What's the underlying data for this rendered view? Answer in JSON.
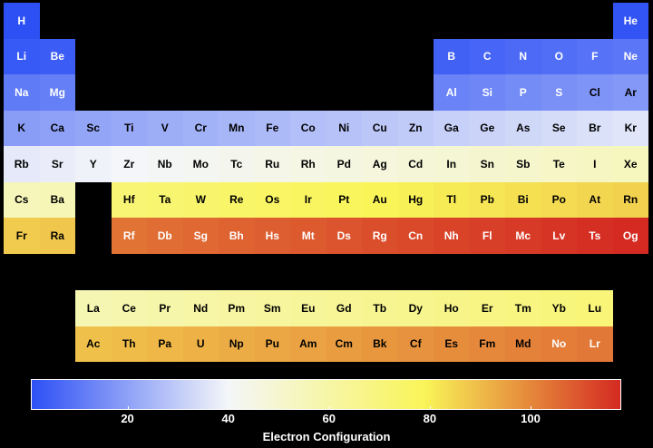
{
  "chart_data": {
    "type": "heatmap",
    "colorbar": {
      "label": "Electron Configuration",
      "range": [
        1,
        118
      ],
      "ticks": [
        20,
        40,
        60,
        80,
        100
      ],
      "colors": [
        "#2d50f5",
        "#f4f6f9",
        "#f9f558",
        "#d42a22"
      ]
    },
    "elements": [
      {
        "s": "H",
        "z": 1,
        "r": 1,
        "c": 1
      },
      {
        "s": "He",
        "z": 2,
        "r": 1,
        "c": 18
      },
      {
        "s": "Li",
        "z": 3,
        "r": 2,
        "c": 1
      },
      {
        "s": "Be",
        "z": 4,
        "r": 2,
        "c": 2
      },
      {
        "s": "B",
        "z": 5,
        "r": 2,
        "c": 13
      },
      {
        "s": "C",
        "z": 6,
        "r": 2,
        "c": 14
      },
      {
        "s": "N",
        "z": 7,
        "r": 2,
        "c": 15
      },
      {
        "s": "O",
        "z": 8,
        "r": 2,
        "c": 16
      },
      {
        "s": "F",
        "z": 9,
        "r": 2,
        "c": 17
      },
      {
        "s": "Ne",
        "z": 10,
        "r": 2,
        "c": 18
      },
      {
        "s": "Na",
        "z": 11,
        "r": 3,
        "c": 1
      },
      {
        "s": "Mg",
        "z": 12,
        "r": 3,
        "c": 2
      },
      {
        "s": "Al",
        "z": 13,
        "r": 3,
        "c": 13
      },
      {
        "s": "Si",
        "z": 14,
        "r": 3,
        "c": 14
      },
      {
        "s": "P",
        "z": 15,
        "r": 3,
        "c": 15
      },
      {
        "s": "S",
        "z": 16,
        "r": 3,
        "c": 16
      },
      {
        "s": "Cl",
        "z": 17,
        "r": 3,
        "c": 17
      },
      {
        "s": "Ar",
        "z": 18,
        "r": 3,
        "c": 18
      },
      {
        "s": "K",
        "z": 19,
        "r": 4,
        "c": 1
      },
      {
        "s": "Ca",
        "z": 20,
        "r": 4,
        "c": 2
      },
      {
        "s": "Sc",
        "z": 21,
        "r": 4,
        "c": 3
      },
      {
        "s": "Ti",
        "z": 22,
        "r": 4,
        "c": 4
      },
      {
        "s": "V",
        "z": 23,
        "r": 4,
        "c": 5
      },
      {
        "s": "Cr",
        "z": 24,
        "r": 4,
        "c": 6
      },
      {
        "s": "Mn",
        "z": 25,
        "r": 4,
        "c": 7
      },
      {
        "s": "Fe",
        "z": 26,
        "r": 4,
        "c": 8
      },
      {
        "s": "Co",
        "z": 27,
        "r": 4,
        "c": 9
      },
      {
        "s": "Ni",
        "z": 28,
        "r": 4,
        "c": 10
      },
      {
        "s": "Cu",
        "z": 29,
        "r": 4,
        "c": 11
      },
      {
        "s": "Zn",
        "z": 30,
        "r": 4,
        "c": 12
      },
      {
        "s": "Ga",
        "z": 31,
        "r": 4,
        "c": 13
      },
      {
        "s": "Ge",
        "z": 32,
        "r": 4,
        "c": 14
      },
      {
        "s": "As",
        "z": 33,
        "r": 4,
        "c": 15
      },
      {
        "s": "Se",
        "z": 34,
        "r": 4,
        "c": 16
      },
      {
        "s": "Br",
        "z": 35,
        "r": 4,
        "c": 17
      },
      {
        "s": "Kr",
        "z": 36,
        "r": 4,
        "c": 18
      },
      {
        "s": "Rb",
        "z": 37,
        "r": 5,
        "c": 1
      },
      {
        "s": "Sr",
        "z": 38,
        "r": 5,
        "c": 2
      },
      {
        "s": "Y",
        "z": 39,
        "r": 5,
        "c": 3
      },
      {
        "s": "Zr",
        "z": 40,
        "r": 5,
        "c": 4
      },
      {
        "s": "Nb",
        "z": 41,
        "r": 5,
        "c": 5
      },
      {
        "s": "Mo",
        "z": 42,
        "r": 5,
        "c": 6
      },
      {
        "s": "Tc",
        "z": 43,
        "r": 5,
        "c": 7
      },
      {
        "s": "Ru",
        "z": 44,
        "r": 5,
        "c": 8
      },
      {
        "s": "Rh",
        "z": 45,
        "r": 5,
        "c": 9
      },
      {
        "s": "Pd",
        "z": 46,
        "r": 5,
        "c": 10
      },
      {
        "s": "Ag",
        "z": 47,
        "r": 5,
        "c": 11
      },
      {
        "s": "Cd",
        "z": 48,
        "r": 5,
        "c": 12
      },
      {
        "s": "In",
        "z": 49,
        "r": 5,
        "c": 13
      },
      {
        "s": "Sn",
        "z": 50,
        "r": 5,
        "c": 14
      },
      {
        "s": "Sb",
        "z": 51,
        "r": 5,
        "c": 15
      },
      {
        "s": "Te",
        "z": 52,
        "r": 5,
        "c": 16
      },
      {
        "s": "I",
        "z": 53,
        "r": 5,
        "c": 17
      },
      {
        "s": "Xe",
        "z": 54,
        "r": 5,
        "c": 18
      },
      {
        "s": "Cs",
        "z": 55,
        "r": 6,
        "c": 1
      },
      {
        "s": "Ba",
        "z": 56,
        "r": 6,
        "c": 2
      },
      {
        "s": "Hf",
        "z": 72,
        "r": 6,
        "c": 4
      },
      {
        "s": "Ta",
        "z": 73,
        "r": 6,
        "c": 5
      },
      {
        "s": "W",
        "z": 74,
        "r": 6,
        "c": 6
      },
      {
        "s": "Re",
        "z": 75,
        "r": 6,
        "c": 7
      },
      {
        "s": "Os",
        "z": 76,
        "r": 6,
        "c": 8
      },
      {
        "s": "Ir",
        "z": 77,
        "r": 6,
        "c": 9
      },
      {
        "s": "Pt",
        "z": 78,
        "r": 6,
        "c": 10
      },
      {
        "s": "Au",
        "z": 79,
        "r": 6,
        "c": 11
      },
      {
        "s": "Hg",
        "z": 80,
        "r": 6,
        "c": 12
      },
      {
        "s": "Tl",
        "z": 81,
        "r": 6,
        "c": 13
      },
      {
        "s": "Pb",
        "z": 82,
        "r": 6,
        "c": 14
      },
      {
        "s": "Bi",
        "z": 83,
        "r": 6,
        "c": 15
      },
      {
        "s": "Po",
        "z": 84,
        "r": 6,
        "c": 16
      },
      {
        "s": "At",
        "z": 85,
        "r": 6,
        "c": 17
      },
      {
        "s": "Rn",
        "z": 86,
        "r": 6,
        "c": 18
      },
      {
        "s": "Fr",
        "z": 87,
        "r": 7,
        "c": 1
      },
      {
        "s": "Ra",
        "z": 88,
        "r": 7,
        "c": 2
      },
      {
        "s": "Rf",
        "z": 104,
        "r": 7,
        "c": 4
      },
      {
        "s": "Db",
        "z": 105,
        "r": 7,
        "c": 5
      },
      {
        "s": "Sg",
        "z": 106,
        "r": 7,
        "c": 6
      },
      {
        "s": "Bh",
        "z": 107,
        "r": 7,
        "c": 7
      },
      {
        "s": "Hs",
        "z": 108,
        "r": 7,
        "c": 8
      },
      {
        "s": "Mt",
        "z": 109,
        "r": 7,
        "c": 9
      },
      {
        "s": "Ds",
        "z": 110,
        "r": 7,
        "c": 10
      },
      {
        "s": "Rg",
        "z": 111,
        "r": 7,
        "c": 11
      },
      {
        "s": "Cn",
        "z": 112,
        "r": 7,
        "c": 12
      },
      {
        "s": "Nh",
        "z": 113,
        "r": 7,
        "c": 13
      },
      {
        "s": "Fl",
        "z": 114,
        "r": 7,
        "c": 14
      },
      {
        "s": "Mc",
        "z": 115,
        "r": 7,
        "c": 15
      },
      {
        "s": "Lv",
        "z": 116,
        "r": 7,
        "c": 16
      },
      {
        "s": "Ts",
        "z": 117,
        "r": 7,
        "c": 17
      },
      {
        "s": "Og",
        "z": 118,
        "r": 7,
        "c": 18
      },
      {
        "s": "La",
        "z": 57,
        "r": 9,
        "c": 3
      },
      {
        "s": "Ce",
        "z": 58,
        "r": 9,
        "c": 4
      },
      {
        "s": "Pr",
        "z": 59,
        "r": 9,
        "c": 5
      },
      {
        "s": "Nd",
        "z": 60,
        "r": 9,
        "c": 6
      },
      {
        "s": "Pm",
        "z": 61,
        "r": 9,
        "c": 7
      },
      {
        "s": "Sm",
        "z": 62,
        "r": 9,
        "c": 8
      },
      {
        "s": "Eu",
        "z": 63,
        "r": 9,
        "c": 9
      },
      {
        "s": "Gd",
        "z": 64,
        "r": 9,
        "c": 10
      },
      {
        "s": "Tb",
        "z": 65,
        "r": 9,
        "c": 11
      },
      {
        "s": "Dy",
        "z": 66,
        "r": 9,
        "c": 12
      },
      {
        "s": "Ho",
        "z": 67,
        "r": 9,
        "c": 13
      },
      {
        "s": "Er",
        "z": 68,
        "r": 9,
        "c": 14
      },
      {
        "s": "Tm",
        "z": 69,
        "r": 9,
        "c": 15
      },
      {
        "s": "Yb",
        "z": 70,
        "r": 9,
        "c": 16
      },
      {
        "s": "Lu",
        "z": 71,
        "r": 9,
        "c": 17
      },
      {
        "s": "Ac",
        "z": 89,
        "r": 10,
        "c": 3
      },
      {
        "s": "Th",
        "z": 90,
        "r": 10,
        "c": 4
      },
      {
        "s": "Pa",
        "z": 91,
        "r": 10,
        "c": 5
      },
      {
        "s": "U",
        "z": 92,
        "r": 10,
        "c": 6
      },
      {
        "s": "Np",
        "z": 93,
        "r": 10,
        "c": 7
      },
      {
        "s": "Pu",
        "z": 94,
        "r": 10,
        "c": 8
      },
      {
        "s": "Am",
        "z": 95,
        "r": 10,
        "c": 9
      },
      {
        "s": "Cm",
        "z": 96,
        "r": 10,
        "c": 10
      },
      {
        "s": "Bk",
        "z": 97,
        "r": 10,
        "c": 11
      },
      {
        "s": "Cf",
        "z": 98,
        "r": 10,
        "c": 12
      },
      {
        "s": "Es",
        "z": 99,
        "r": 10,
        "c": 13
      },
      {
        "s": "Fm",
        "z": 100,
        "r": 10,
        "c": 14
      },
      {
        "s": "Md",
        "z": 101,
        "r": 10,
        "c": 15
      },
      {
        "s": "No",
        "z": 102,
        "r": 10,
        "c": 16
      },
      {
        "s": "Lr",
        "z": 103,
        "r": 10,
        "c": 17
      }
    ]
  }
}
